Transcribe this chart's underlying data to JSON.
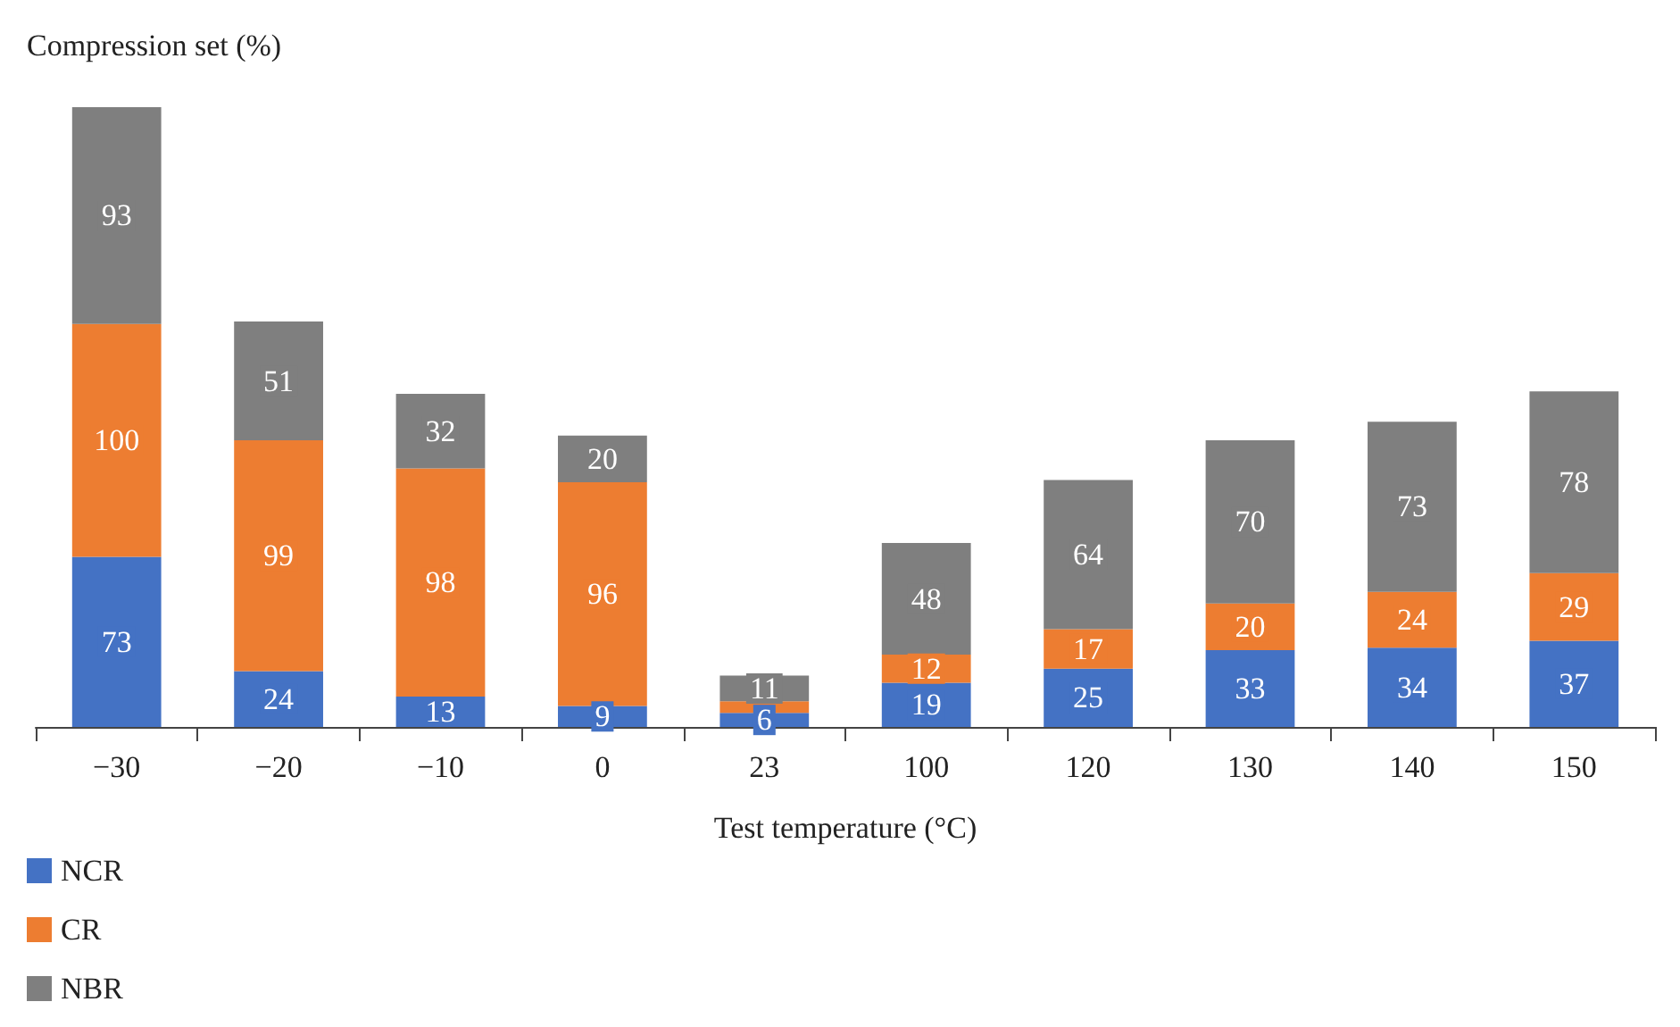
{
  "chart_data": {
    "type": "bar",
    "stacked": true,
    "xlabel": "Test temperature (°C)",
    "ylabel": "Compression set (%)",
    "categories": [
      "−30",
      "−20",
      "−10",
      "0",
      "23",
      "100",
      "120",
      "130",
      "140",
      "150"
    ],
    "series": [
      {
        "name": "NCR",
        "color": "#4472c4",
        "values": [
          73,
          24,
          13,
          9,
          6,
          19,
          25,
          33,
          34,
          37
        ],
        "value_labels": [
          "73",
          "24",
          "13",
          "9",
          "6",
          "19",
          "25",
          "33",
          "34",
          "37"
        ]
      },
      {
        "name": "CR",
        "color": "#ed7d31",
        "values": [
          100,
          99,
          98,
          96,
          5,
          12,
          17,
          20,
          24,
          29
        ],
        "value_labels": [
          "100",
          "99",
          "98",
          "96",
          null,
          "12",
          "17",
          "20",
          "24",
          "29"
        ]
      },
      {
        "name": "NBR",
        "color": "#7f7f7f",
        "values": [
          93,
          51,
          32,
          20,
          11,
          48,
          64,
          70,
          73,
          78
        ],
        "value_labels": [
          "93",
          "51",
          "32",
          "20",
          "11",
          "48",
          "64",
          "70",
          "73",
          "78"
        ]
      }
    ],
    "legend": "bottom left",
    "grid": false
  }
}
